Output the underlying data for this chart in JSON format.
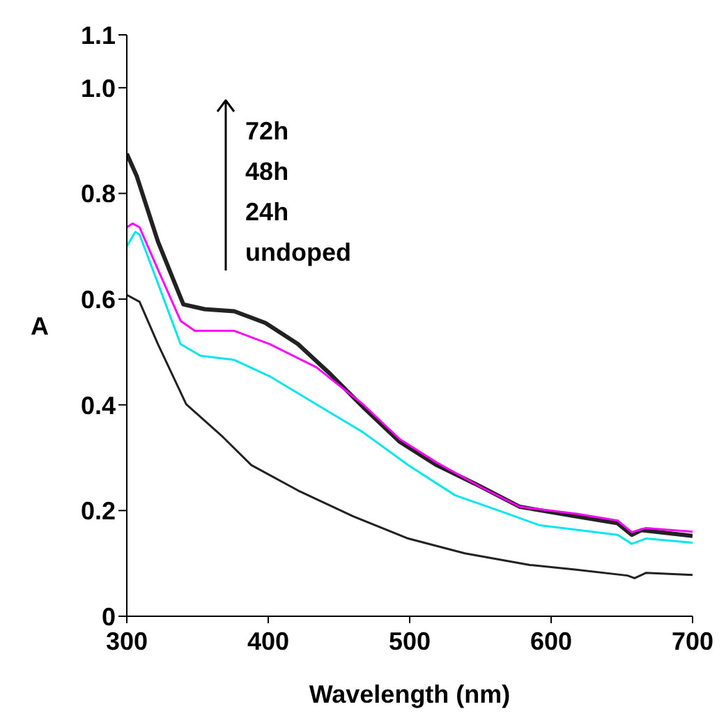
{
  "chart_data": {
    "type": "line",
    "xlabel": "Wavelength (nm)",
    "ylabel": "A",
    "annotations": [
      "72h",
      "48h",
      "24h",
      "undoped"
    ],
    "xlim": [
      300,
      700
    ],
    "xticks": [
      300,
      400,
      500,
      600,
      700
    ],
    "ylim": [
      0,
      1.1
    ],
    "yticks": [
      0,
      0.2,
      0.4,
      0.6,
      0.8,
      {
        "value": 1,
        "label": "1.0"
      },
      1.1
    ],
    "marker": "none",
    "line_style": "solid",
    "series": [
      {
        "color": "#222222",
        "x": [
          300,
          307,
          322,
          340,
          355,
          376,
          398,
          421,
          444,
          467,
          493,
          519,
          546,
          578,
          618,
          647,
          657,
          664,
          700
        ],
        "values": [
          0.875,
          0.833,
          0.709,
          0.59,
          0.581,
          0.577,
          0.555,
          0.515,
          0.458,
          0.396,
          0.33,
          0.286,
          0.251,
          0.207,
          0.189,
          0.176,
          0.154,
          0.163,
          0.152
        ]
      },
      {
        "color": "#ff00ff",
        "x": [
          300,
          304,
          309,
          322,
          338,
          348,
          376,
          401,
          434,
          467,
          493,
          519,
          552,
          578,
          618,
          647,
          657,
          667,
          700
        ],
        "values": [
          0.736,
          0.743,
          0.736,
          0.656,
          0.559,
          0.54,
          0.54,
          0.515,
          0.471,
          0.401,
          0.335,
          0.291,
          0.242,
          0.207,
          0.194,
          0.181,
          0.159,
          0.167,
          0.16
        ]
      },
      {
        "color": "#00e5ee",
        "x": [
          300,
          306,
          309,
          322,
          338,
          352,
          376,
          401,
          434,
          467,
          499,
          532,
          565,
          592,
          647,
          657,
          667,
          700
        ],
        "values": [
          0.7,
          0.727,
          0.722,
          0.63,
          0.515,
          0.493,
          0.485,
          0.454,
          0.401,
          0.348,
          0.286,
          0.229,
          0.198,
          0.172,
          0.154,
          0.137,
          0.147,
          0.139
        ]
      },
      {
        "color": "#222222",
        "x": [
          300,
          309,
          322,
          342,
          368,
          388,
          421,
          460,
          499,
          539,
          585,
          618,
          654,
          659,
          667,
          700
        ],
        "values": [
          0.608,
          0.595,
          0.515,
          0.401,
          0.339,
          0.286,
          0.238,
          0.189,
          0.147,
          0.119,
          0.097,
          0.088,
          0.077,
          0.072,
          0.082,
          0.078
        ]
      }
    ]
  }
}
